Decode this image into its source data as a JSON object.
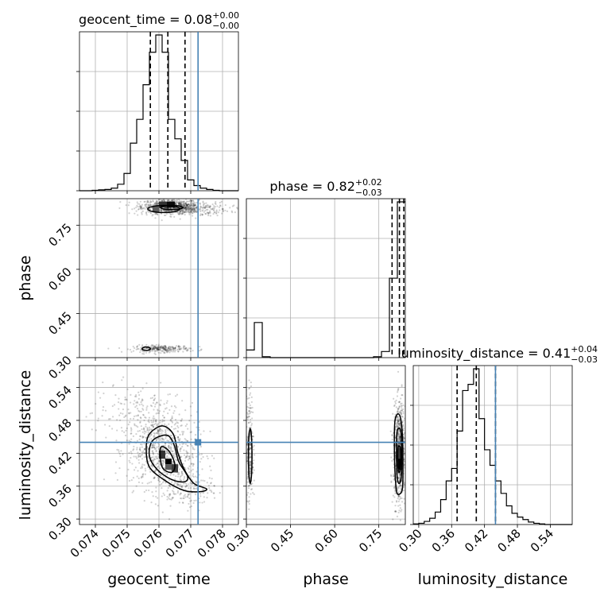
{
  "chart_data": {
    "type": "corner",
    "parameters": [
      {
        "name": "geocent_time",
        "label": "geocent_time",
        "title": "geocent_time = 0.08",
        "title_sup": "+0.00",
        "title_sub": "−0.00",
        "range": [
          0.0735,
          0.0785
        ],
        "ticks": [
          0.074,
          0.075,
          0.076,
          0.077,
          0.078
        ],
        "tick_labels": [
          "0.074",
          "0.075",
          "0.076",
          "0.077",
          "0.078"
        ],
        "quantiles": [
          0.07573,
          0.07628,
          0.07682
        ],
        "truth": 0.07723,
        "hist_edges": [
          0.0735,
          0.0737,
          0.0739,
          0.0741,
          0.0743,
          0.0745,
          0.0747,
          0.0749,
          0.0751,
          0.0753,
          0.0755,
          0.0757,
          0.0759,
          0.0761,
          0.0763,
          0.0765,
          0.0767,
          0.0769,
          0.0771,
          0.0773,
          0.0775,
          0.0777,
          0.0779,
          0.0781,
          0.0783,
          0.0785
        ],
        "hist_counts": [
          0,
          0,
          1,
          2,
          3,
          6,
          15,
          40,
          110,
          165,
          245,
          320,
          360,
          320,
          165,
          120,
          70,
          25,
          12,
          6,
          3,
          1,
          0,
          0,
          0
        ]
      },
      {
        "name": "phase",
        "label": "phase",
        "title": "phase = 0.82",
        "title_sup": "+0.02",
        "title_sub": "−0.03",
        "range": [
          0.3,
          0.84
        ],
        "ticks": [
          0.3,
          0.45,
          0.6,
          0.75
        ],
        "tick_labels": [
          "0.30",
          "0.45",
          "0.60",
          "0.75"
        ],
        "quantiles": [
          0.795,
          0.82,
          0.835
        ],
        "truth": null,
        "hist_edges": [
          0.3,
          0.327,
          0.354,
          0.381,
          0.408,
          0.435,
          0.462,
          0.489,
          0.516,
          0.543,
          0.57,
          0.597,
          0.624,
          0.651,
          0.678,
          0.705,
          0.732,
          0.759,
          0.786,
          0.813,
          0.84
        ],
        "hist_counts": [
          25,
          115,
          3,
          0,
          0,
          0,
          0,
          0,
          0,
          0,
          0,
          0,
          0,
          0,
          0,
          0,
          3,
          20,
          260,
          510
        ]
      },
      {
        "name": "luminosity_distance",
        "label": "luminosity_distance",
        "title": "luminosity_distance = 0.41",
        "title_sup": "+0.04",
        "title_sub": "−0.03",
        "range": [
          0.29,
          0.58
        ],
        "ticks": [
          0.3,
          0.36,
          0.42,
          0.48,
          0.54
        ],
        "tick_labels": [
          "0.30",
          "0.36",
          "0.42",
          "0.48",
          "0.54"
        ],
        "quantiles": [
          0.37,
          0.405,
          0.44
        ],
        "truth": 0.44,
        "hist_edges": [
          0.29,
          0.3,
          0.31,
          0.32,
          0.33,
          0.34,
          0.35,
          0.36,
          0.37,
          0.38,
          0.39,
          0.4,
          0.41,
          0.42,
          0.43,
          0.44,
          0.45,
          0.46,
          0.47,
          0.48,
          0.49,
          0.5,
          0.51,
          0.52,
          0.53,
          0.54,
          0.55,
          0.56,
          0.57,
          0.58
        ],
        "hist_counts": [
          1,
          2,
          5,
          10,
          20,
          40,
          70,
          90,
          150,
          215,
          225,
          250,
          170,
          120,
          95,
          70,
          50,
          30,
          18,
          12,
          8,
          4,
          2,
          1,
          0,
          0,
          0,
          0,
          0
        ]
      }
    ],
    "pairs": [
      {
        "x": "geocent_time",
        "y": "phase",
        "clusters": [
          {
            "mean": [
              0.07635,
              0.815
            ],
            "sd": [
              0.00045,
              0.012
            ],
            "n": 600
          },
          {
            "mean": [
              0.0768,
              0.805
            ],
            "sd": [
              0.0007,
              0.012
            ],
            "n": 350
          },
          {
            "mean": [
              0.0761,
              0.33
            ],
            "sd": [
              0.00045,
              0.006
            ],
            "n": 260
          }
        ],
        "contours": [
          {
            "center": [
              0.07615,
              0.805
            ],
            "radii": [
              0.0005,
              0.012
            ]
          },
          {
            "center": [
              0.0764,
              0.81
            ],
            "radii": [
              0.00035,
              0.007
            ]
          },
          {
            "center": [
              0.0756,
              0.33
            ],
            "radii": [
              0.00013,
              0.006
            ]
          }
        ],
        "density_cells": [
          {
            "x": [
              0.07625,
              0.0765
            ],
            "y": [
              0.81,
              0.83
            ],
            "shade": 0.05
          },
          {
            "x": [
              0.076,
              0.07625
            ],
            "y": [
              0.81,
              0.83
            ],
            "shade": 0.25
          },
          {
            "x": [
              0.0758,
              0.076
            ],
            "y": [
              0.795,
              0.815
            ],
            "shade": 0.45
          }
        ]
      },
      {
        "x": "geocent_time",
        "y": "luminosity_distance",
        "clusters": [
          {
            "mean": [
              0.0761,
              0.425
            ],
            "sd": [
              0.00055,
              0.035
            ],
            "n": 700
          },
          {
            "mean": [
              0.0768,
              0.36
            ],
            "sd": [
              0.00045,
              0.02
            ],
            "n": 200
          },
          {
            "mean": [
              0.0753,
              0.49
            ],
            "sd": [
              0.0007,
              0.03
            ],
            "n": 200
          }
        ],
        "contours": [
          {
            "points": [
              [
                0.0757,
                0.455
              ],
              [
                0.0761,
                0.47
              ],
              [
                0.07645,
                0.455
              ],
              [
                0.0766,
                0.42
              ],
              [
                0.0768,
                0.39
              ],
              [
                0.0771,
                0.365
              ],
              [
                0.0775,
                0.355
              ],
              [
                0.0773,
                0.35
              ],
              [
                0.0768,
                0.352
              ],
              [
                0.0762,
                0.37
              ],
              [
                0.0757,
                0.395
              ],
              [
                0.0756,
                0.43
              ]
            ]
          },
          {
            "points": [
              [
                0.0758,
                0.443
              ],
              [
                0.07625,
                0.453
              ],
              [
                0.07648,
                0.435
              ],
              [
                0.07662,
                0.405
              ],
              [
                0.0769,
                0.378
              ],
              [
                0.0768,
                0.368
              ],
              [
                0.0764,
                0.372
              ],
              [
                0.07595,
                0.39
              ],
              [
                0.0757,
                0.415
              ]
            ]
          },
          {
            "points": [
              [
                0.07605,
                0.43
              ],
              [
                0.0763,
                0.425
              ],
              [
                0.0765,
                0.4
              ],
              [
                0.0764,
                0.385
              ],
              [
                0.0761,
                0.395
              ]
            ]
          }
        ],
        "density_cells": [
          {
            "x": [
              0.076,
              0.0762
            ],
            "y": [
              0.41,
              0.425
            ],
            "shade": 0.25
          },
          {
            "x": [
              0.0762,
              0.0764
            ],
            "y": [
              0.4,
              0.41
            ],
            "shade": 0.0
          },
          {
            "x": [
              0.0764,
              0.0766
            ],
            "y": [
              0.385,
              0.4
            ],
            "shade": 0.3
          },
          {
            "x": [
              0.0762,
              0.0764
            ],
            "y": [
              0.39,
              0.4
            ],
            "shade": 0.45
          }
        ]
      },
      {
        "x": "phase",
        "y": "luminosity_distance",
        "clusters": [
          {
            "mean": [
              0.312,
              0.43
            ],
            "sd": [
              0.006,
              0.05
            ],
            "n": 250
          },
          {
            "mean": [
              0.82,
              0.42
            ],
            "sd": [
              0.01,
              0.045
            ],
            "n": 800
          }
        ],
        "contours": [
          {
            "center": [
              0.313,
              0.415
            ],
            "radii": [
              0.006,
              0.05
            ]
          },
          {
            "points": [
              [
                0.805,
                0.48
              ],
              [
                0.82,
                0.49
              ],
              [
                0.83,
                0.455
              ],
              [
                0.832,
                0.4
              ],
              [
                0.83,
                0.355
              ],
              [
                0.815,
                0.345
              ],
              [
                0.808,
                0.36
              ],
              [
                0.803,
                0.42
              ]
            ]
          },
          {
            "points": [
              [
                0.812,
                0.46
              ],
              [
                0.824,
                0.462
              ],
              [
                0.828,
                0.42
              ],
              [
                0.826,
                0.375
              ],
              [
                0.818,
                0.365
              ],
              [
                0.812,
                0.38
              ],
              [
                0.81,
                0.42
              ]
            ]
          },
          {
            "points": [
              [
                0.815,
                0.43
              ],
              [
                0.823,
                0.43
              ],
              [
                0.825,
                0.405
              ],
              [
                0.82,
                0.385
              ],
              [
                0.815,
                0.395
              ]
            ]
          }
        ],
        "density_cells": [
          {
            "x": [
              0.814,
              0.824
            ],
            "y": [
              0.405,
              0.43
            ],
            "shade": 0.3
          },
          {
            "x": [
              0.816,
              0.826
            ],
            "y": [
              0.39,
              0.41
            ],
            "shade": 0.0
          }
        ]
      }
    ],
    "grid": true,
    "truth_color": "#4682b4",
    "contour_color": "#000000"
  }
}
